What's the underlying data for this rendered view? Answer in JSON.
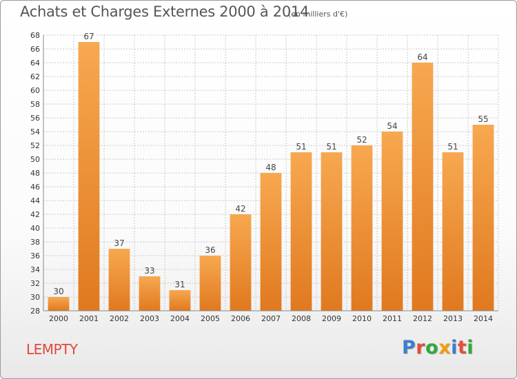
{
  "title": "Achats et Charges Externes 2000 à 2014",
  "subtitle": "(en milliers d'€)",
  "commune": "LEMPTY",
  "logo": {
    "letters": [
      {
        "ch": "P",
        "color": "#3a7fd1"
      },
      {
        "ch": "r",
        "color": "#e74c3c"
      },
      {
        "ch": "o",
        "color": "#2faa3a"
      },
      {
        "ch": "x",
        "color": "#f39c12"
      },
      {
        "ch": "i",
        "color": "#3a7fd1"
      },
      {
        "ch": "t",
        "color": "#e74c3c"
      },
      {
        "ch": "i",
        "color": "#2faa3a"
      }
    ]
  },
  "colors": {
    "bar_light": "#f7a850",
    "bar_dark": "#e0791f",
    "grid": "#c8c8c8",
    "axis_text": "#333333"
  },
  "chart_data": {
    "type": "bar",
    "title": "Achats et Charges Externes 2000 à 2014",
    "subtitle": "(en milliers d'€)",
    "categories": [
      "2000",
      "2001",
      "2002",
      "2003",
      "2004",
      "2005",
      "2006",
      "2007",
      "2008",
      "2009",
      "2010",
      "2011",
      "2012",
      "2013",
      "2014"
    ],
    "values": [
      30,
      67,
      37,
      33,
      31,
      36,
      42,
      48,
      51,
      51,
      52,
      54,
      64,
      51,
      55
    ],
    "ylim": [
      28,
      68
    ],
    "yticks": [
      28,
      30,
      32,
      34,
      36,
      38,
      40,
      42,
      44,
      46,
      48,
      50,
      52,
      54,
      56,
      58,
      60,
      62,
      64,
      66,
      68
    ],
    "grid": true,
    "data_labels": true
  }
}
